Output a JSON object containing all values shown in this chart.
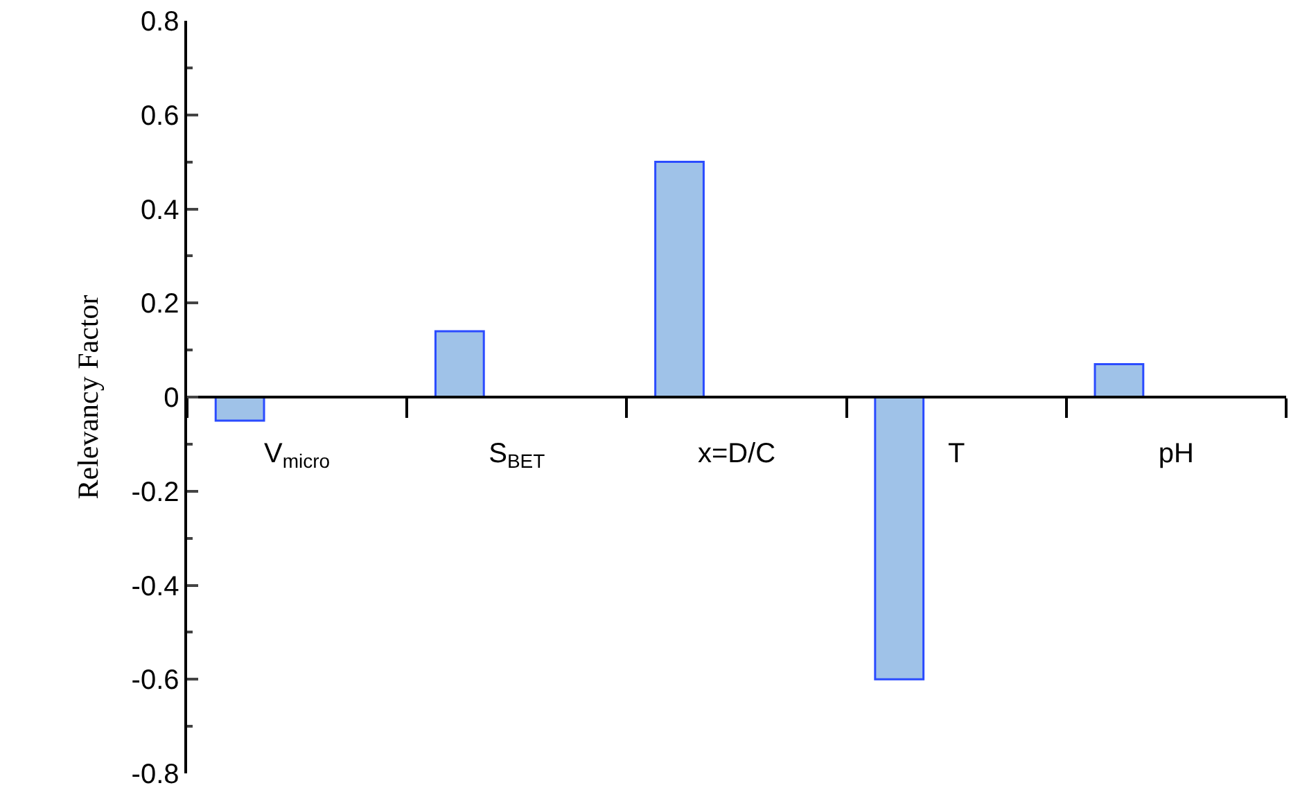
{
  "chart_data": {
    "type": "bar",
    "ylabel": "Relevancy Factor",
    "categories": [
      "V$_{micro}$",
      "S$_{BET}$",
      "x=D/C",
      "T",
      "pH"
    ],
    "values": [
      -0.05,
      0.14,
      0.5,
      -0.6,
      0.07
    ],
    "color": "#9fc2e8",
    "ylim": [
      -0.8,
      0.8
    ],
    "yticks": [
      -0.8,
      -0.6,
      -0.4,
      -0.2,
      0,
      0.2,
      0.4,
      0.6,
      0.8
    ],
    "grid": false
  }
}
